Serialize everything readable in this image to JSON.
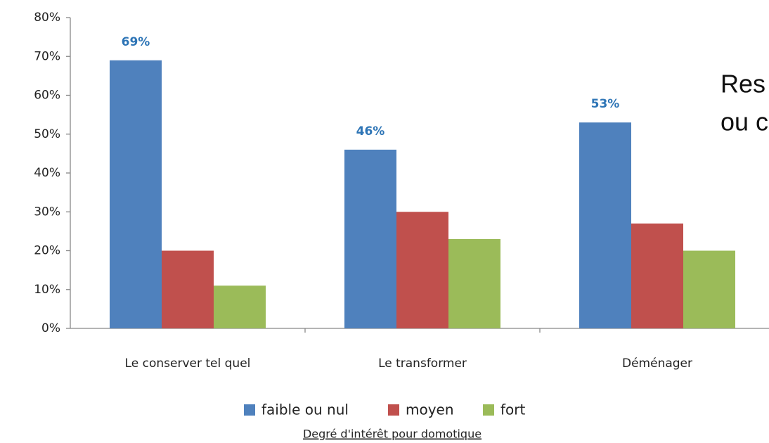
{
  "chart_data": {
    "type": "bar",
    "categories": [
      "Le conserver tel quel",
      "Le transformer",
      "Déménager"
    ],
    "series": [
      {
        "name": "faible ou nul",
        "color": "#4f81bd",
        "values": [
          69,
          46,
          53
        ],
        "value_labels": [
          "69%",
          "46%",
          "53%"
        ]
      },
      {
        "name": "moyen",
        "color": "#c0504d",
        "values": [
          20,
          30,
          27
        ]
      },
      {
        "name": "fort",
        "color": "#9bbb59",
        "values": [
          11,
          23,
          20
        ]
      }
    ],
    "ylim": [
      0,
      80
    ],
    "yticks": [
      {
        "value": 0,
        "label": "0%"
      },
      {
        "value": 10,
        "label": "10%"
      },
      {
        "value": 20,
        "label": "20%"
      },
      {
        "value": 30,
        "label": "30%"
      },
      {
        "value": 40,
        "label": "40%"
      },
      {
        "value": 50,
        "label": "50%"
      },
      {
        "value": 60,
        "label": "60%"
      },
      {
        "value": 70,
        "label": "70%"
      },
      {
        "value": 80,
        "label": "80%"
      }
    ],
    "xlabel": "Degré d'intérêt pour domotique",
    "annotations": [
      "Res",
      "ou c"
    ],
    "grid": false
  }
}
